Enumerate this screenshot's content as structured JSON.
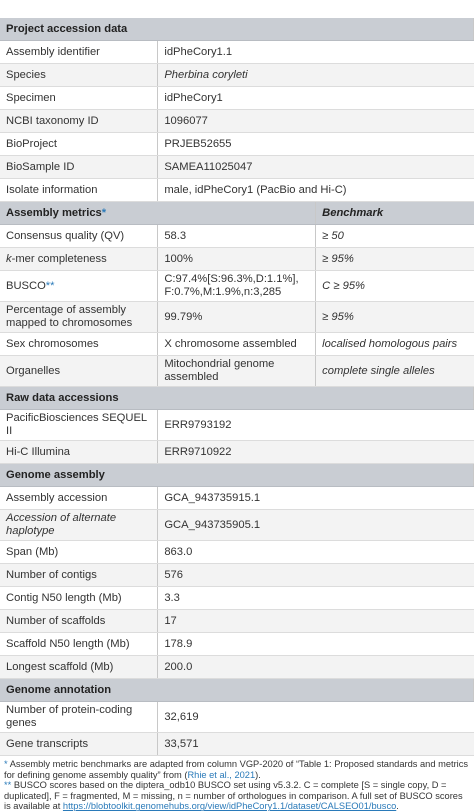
{
  "sections": [
    {
      "title": "Project accession data",
      "rows": [
        [
          "Assembly identifier",
          "idPheCory1.1"
        ],
        [
          "Species",
          "Pherbina coryleti"
        ],
        [
          "Specimen",
          "idPheCory1"
        ],
        [
          "NCBI taxonomy ID",
          "1096077"
        ],
        [
          "BioProject",
          "PRJEB52655"
        ],
        [
          "BioSample ID",
          "SAMEA11025047"
        ],
        [
          "Isolate information",
          "male, idPheCory1 (PacBio and Hi-C)"
        ]
      ]
    },
    {
      "title": [
        "Assembly metrics",
        "*"
      ],
      "benchmark": "Benchmark",
      "rows": [
        [
          "Consensus quality (QV)",
          "58.3",
          "≥ 50"
        ],
        [
          [
            "k",
            "-mer completeness"
          ],
          "100%",
          "≥ 95%"
        ],
        [
          [
            "BUSCO",
            "**"
          ],
          "C:97.4%[S:96.3%,D:1.1%], F:0.7%,M:1.9%,n:3,285",
          "C ≥ 95%"
        ],
        [
          "Percentage of assembly mapped to chromosomes",
          "99.79%",
          "≥ 95%"
        ],
        [
          "Sex chromosomes",
          "X chromosome assembled",
          "localised homologous pairs"
        ],
        [
          "Organelles",
          "Mitochondrial genome assembled",
          "complete single alleles"
        ]
      ]
    },
    {
      "title": "Raw data accessions",
      "rows": [
        [
          "PacificBiosciences SEQUEL II",
          "ERR9793192"
        ],
        [
          "Hi-C Illumina",
          "ERR9710922"
        ]
      ]
    },
    {
      "title": "Genome assembly",
      "rows": [
        [
          "Assembly accession",
          "GCA_943735915.1"
        ],
        [
          "Accession of alternate haplotype",
          "GCA_943735905.1"
        ],
        [
          "Span (Mb)",
          "863.0"
        ],
        [
          "Number of contigs",
          "576"
        ],
        [
          "Contig N50 length (Mb)",
          "3.3"
        ],
        [
          "Number of scaffolds",
          "17"
        ],
        [
          "Scaffold N50 length (Mb)",
          "178.9"
        ],
        [
          "Longest scaffold (Mb)",
          "200.0"
        ]
      ]
    },
    {
      "title": "Genome annotation",
      "rows": [
        [
          "Number of protein-coding genes",
          "32,619"
        ],
        [
          "Gene transcripts",
          "33,571"
        ]
      ]
    }
  ],
  "footnotes": [
    [
      "*",
      " Assembly metric benchmarks are adapted from column VGP-2020 of “Table 1: Proposed standards and metrics for defining genome assembly quality” from (",
      "Rhie et al., 2021",
      ")."
    ],
    [
      "**",
      " BUSCO scores based on the diptera_odb10 BUSCO set using v5.3.2. C = complete [S = single copy, D = duplicated], F = fragmented, M = missing, n = number of orthologues in comparison. A full set of BUSCO scores is available at ",
      "https://blobtoolkit.genomehubs.org/view/idPheCory1.1/dataset/CALSEO01/busco",
      "."
    ]
  ]
}
